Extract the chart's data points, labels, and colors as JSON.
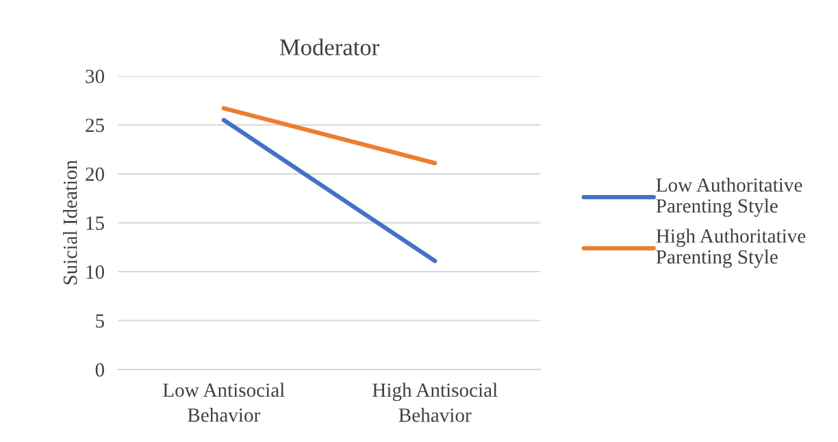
{
  "chart_data": {
    "type": "line",
    "title": "Moderator",
    "ylabel": "Suicial Ideation",
    "categories": [
      "Low Antisocial\nBehavior",
      "High Antisocial\nBehavior"
    ],
    "series": [
      {
        "name": "Low Authoritative\nParenting Style",
        "color": "#4472c4",
        "values": [
          25.5,
          11.1
        ]
      },
      {
        "name": "High Authoritative\nParenting Style",
        "color": "#ed7d31",
        "values": [
          26.7,
          21.1
        ]
      }
    ],
    "ylim": [
      0,
      30
    ],
    "yticks": [
      0,
      5,
      10,
      15,
      20,
      25,
      30
    ],
    "grid": "y",
    "legend": "right",
    "marker": "none",
    "line_style": "solid"
  }
}
